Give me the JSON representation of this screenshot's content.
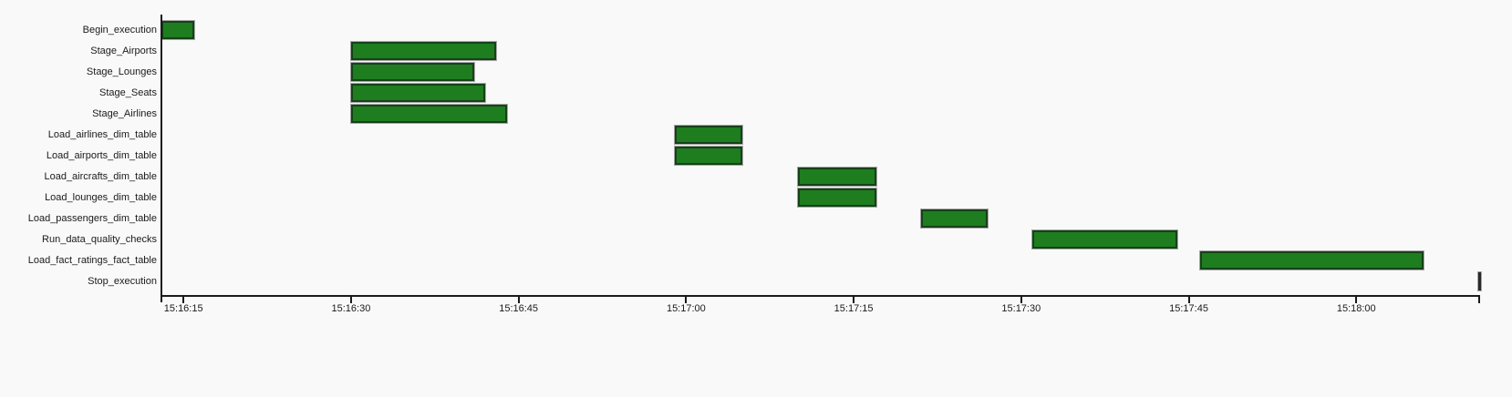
{
  "chart_data": {
    "type": "bar",
    "subtype": "gantt-horizontal",
    "title": "",
    "tasks": [
      {
        "label": "Begin_execution",
        "start": "15:16:13",
        "end": "15:16:16",
        "instant": false
      },
      {
        "label": "Stage_Airports",
        "start": "15:16:30",
        "end": "15:16:43",
        "instant": false
      },
      {
        "label": "Stage_Lounges",
        "start": "15:16:30",
        "end": "15:16:41",
        "instant": false
      },
      {
        "label": "Stage_Seats",
        "start": "15:16:30",
        "end": "15:16:42",
        "instant": false
      },
      {
        "label": "Stage_Airlines",
        "start": "15:16:30",
        "end": "15:16:44",
        "instant": false
      },
      {
        "label": "Load_airlines_dim_table",
        "start": "15:16:59",
        "end": "15:17:05",
        "instant": false
      },
      {
        "label": "Load_airports_dim_table",
        "start": "15:16:59",
        "end": "15:17:05",
        "instant": false
      },
      {
        "label": "Load_aircrafts_dim_table",
        "start": "15:17:10",
        "end": "15:17:17",
        "instant": false
      },
      {
        "label": "Load_lounges_dim_table",
        "start": "15:17:10",
        "end": "15:17:17",
        "instant": false
      },
      {
        "label": "Load_passengers_dim_table",
        "start": "15:17:21",
        "end": "15:17:27",
        "instant": false
      },
      {
        "label": "Run_data_quality_checks",
        "start": "15:17:31",
        "end": "15:17:44",
        "instant": false
      },
      {
        "label": "Load_fact_ratings_fact_table",
        "start": "15:17:46",
        "end": "15:18:06",
        "instant": false
      },
      {
        "label": "Stop_execution",
        "start": "15:18:11",
        "end": "15:18:11",
        "instant": true
      }
    ],
    "x_ticks": [
      "15:16:15",
      "15:16:30",
      "15:16:45",
      "15:17:00",
      "15:17:15",
      "15:17:30",
      "15:17:45",
      "15:18:00"
    ],
    "x_domain": [
      "15:16:13",
      "15:18:11"
    ],
    "legend": "none",
    "grid": "off",
    "colors": {
      "bar_fill": "#1e7d1e",
      "bar_border": "#16411a",
      "bar_outline": "#a6a6a6",
      "instant_bar": "#2a2a2a",
      "axis": "#1a1a1a",
      "background": "#f9f9f9"
    }
  }
}
